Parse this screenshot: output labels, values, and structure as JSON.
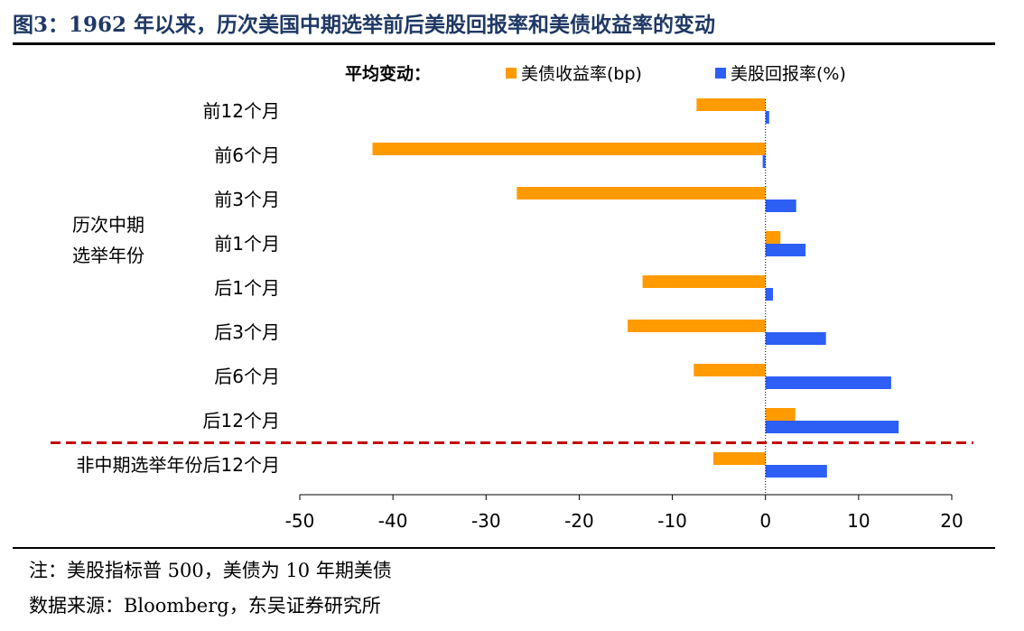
{
  "title": "图3：1962 年以来，历次美国中期选举前后美股回报率和美债收益率的变动",
  "note": "注：美股指标普 500，美债为 10 年期美债",
  "source": "数据来源：Bloomberg，东吴证券研究所",
  "colors": {
    "bond": "#ff9b00",
    "stock": "#2d5ff5",
    "divider": "#c00000",
    "title": "#1f3864"
  },
  "chart_data": {
    "type": "bar",
    "orientation": "horizontal",
    "legend_title": "平均变动：",
    "group_label": [
      "历次中期",
      "选举年份"
    ],
    "categories": [
      "前12个月",
      "前6个月",
      "前3个月",
      "前1个月",
      "后1个月",
      "后3个月",
      "后6个月",
      "后12个月",
      "非中期选举年份后12个月"
    ],
    "series": [
      {
        "name": "美债收益率(bp)",
        "values": [
          -7.4,
          -42.2,
          -26.7,
          1.6,
          -13.2,
          -14.8,
          -7.7,
          3.2,
          -5.6
        ]
      },
      {
        "name": "美股回报率(%)",
        "values": [
          0.4,
          -0.3,
          3.3,
          4.3,
          0.8,
          6.5,
          13.5,
          14.3,
          6.6
        ]
      }
    ],
    "xlim": [
      -50,
      20
    ],
    "xticks": [
      -50,
      -40,
      -30,
      -20,
      -10,
      0,
      10,
      20
    ],
    "legend_position": "top"
  }
}
